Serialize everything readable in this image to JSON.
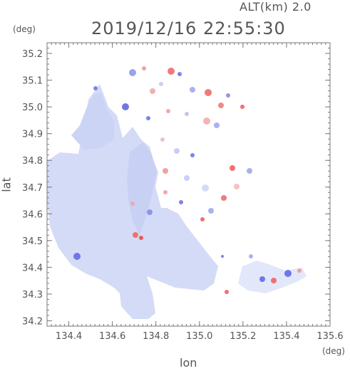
{
  "header": {
    "altitude_label": "ALT(km) 2.0",
    "timestamp": "2019/12/16 22:55:30"
  },
  "chart_data": {
    "type": "heatmap",
    "title": "2019/12/16 22:55:30",
    "xlabel": "lon",
    "ylabel": "lat",
    "x_unit": "(deg)",
    "y_unit": "(deg)",
    "xlim": [
      134.3,
      135.6
    ],
    "ylim": [
      34.18,
      35.24
    ],
    "x_ticks": [
      "134.4",
      "134.6",
      "134.8",
      "135.0",
      "135.2",
      "135.4",
      "135.6"
    ],
    "y_ticks": [
      "34.2",
      "34.3",
      "34.4",
      "34.5",
      "34.6",
      "34.7",
      "34.8",
      "34.9",
      "35.0",
      "35.1",
      "35.2"
    ],
    "colors": {
      "land_fill": "#d2d9f6",
      "negative": "#6f78e6",
      "positive": "#f07070",
      "axis": "#7a7a7a"
    }
  }
}
